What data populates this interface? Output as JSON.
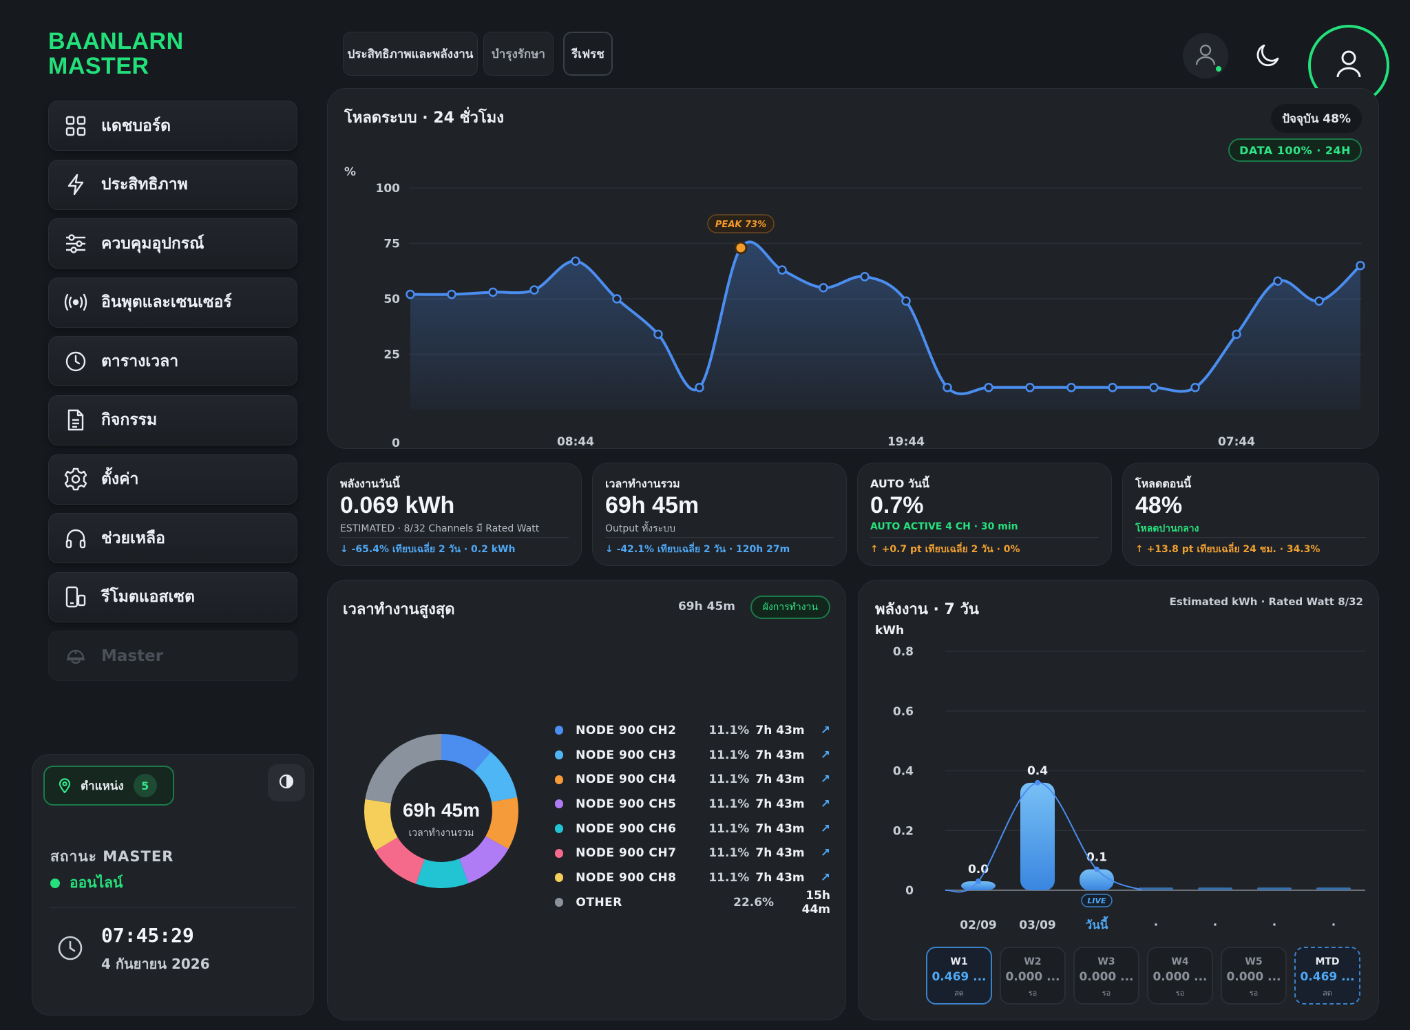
{
  "brand": {
    "line1": "BAANLARN",
    "line2": "MASTER"
  },
  "nav": [
    {
      "label": "แดชบอร์ด",
      "icon": "grid-icon"
    },
    {
      "label": "ประสิทธิภาพ",
      "icon": "lightning-icon"
    },
    {
      "label": "ควบคุมอุปกรณ์",
      "icon": "sliders-icon"
    },
    {
      "label": "อินพุตและเซนเซอร์",
      "icon": "broadcast-icon"
    },
    {
      "label": "ตารางเวลา",
      "icon": "clock-icon"
    },
    {
      "label": "กิจกรรม",
      "icon": "document-icon"
    },
    {
      "label": "ตั้งค่า",
      "icon": "gear-icon"
    },
    {
      "label": "ช่วยเหลือ",
      "icon": "headset-icon"
    },
    {
      "label": "รีโมตแอสเซต",
      "icon": "remote-device-icon"
    },
    {
      "label": "Master",
      "icon": "helmet-icon"
    }
  ],
  "tabs": [
    {
      "label": "ประสิทธิภาพและพลังงาน"
    },
    {
      "label": "บำรุงรักษา"
    },
    {
      "label": "รีเฟรช"
    }
  ],
  "sidebar_card": {
    "location_label": "ตำแหน่ง",
    "location_count": "5",
    "status_label": "สถานะ MASTER",
    "status_value": "ออนไลน์",
    "clock_time": "07:45:29",
    "clock_date": "4 กันยายน 2026"
  },
  "load_panel": {
    "title": "โหลดระบบ · 24 ชั่วโมง",
    "now": "ปัจจุบัน 48%",
    "data": "DATA 100% · 24H",
    "peak_label": "PEAK 73%",
    "accent": "#4b8ef0",
    "peak_color": "#f59b2a"
  },
  "load_chart": {
    "type": "area",
    "ylabel": "%",
    "ylim": [
      0,
      100
    ],
    "y_ticks": [
      "100",
      "75",
      "50",
      "25",
      "0"
    ],
    "x_ticks": [
      "08:44",
      "19:44",
      "07:44"
    ],
    "values": [
      52,
      52,
      53,
      54,
      67,
      50,
      34,
      10,
      73,
      63,
      55,
      60,
      49,
      10,
      10,
      10,
      10,
      10,
      10,
      10,
      34,
      58,
      49,
      65
    ],
    "peak_index": 8
  },
  "kpis": [
    {
      "label": "พลังงานวันนี้",
      "value": "0.069 kWh",
      "sub": "ESTIMATED · 8/32 Channels มี Rated Watt",
      "trend": "↓ -65.4% เทียบเฉลี่ย 2 วัน · 0.2 kWh",
      "trend_color": "blue",
      "sub_color": ""
    },
    {
      "label": "เวลาทำงานรวม",
      "value": "69h 45m",
      "sub": "Output ทั้งระบบ",
      "trend": "↓ -42.1% เทียบเฉลี่ย 2 วัน · 120h 27m",
      "trend_color": "blue",
      "sub_color": ""
    },
    {
      "label": "AUTO วันนี้",
      "value": "0.7%",
      "sub": "AUTO ACTIVE 4 CH · 30 min",
      "trend": "↑ +0.7 pt เทียบเฉลี่ย 2 วัน · 0%",
      "trend_color": "orange",
      "sub_color": "green"
    },
    {
      "label": "โหลดตอนนี้",
      "value": "48%",
      "sub": "โหลดปานกลาง",
      "trend": "↑ +13.8 pt เทียบเฉลี่ย 24 ชม. · 34.3%",
      "trend_color": "orange",
      "sub_color": "green"
    }
  ],
  "runtime_panel": {
    "title": "เวลาทำงานสูงสุด",
    "total": "69h 45m",
    "pill": "ผังการทำงาน",
    "center_value": "69h 45m",
    "center_label": "เวลาทำงานรวม"
  },
  "runtime_chart": {
    "type": "pie",
    "slices": [
      {
        "name": "NODE 900 CH2",
        "pct": 11.1,
        "pct_label": "11.1%",
        "time": "7h 43m",
        "color": "#4b8ef0"
      },
      {
        "name": "NODE 900 CH3",
        "pct": 11.1,
        "pct_label": "11.1%",
        "time": "7h 43m",
        "color": "#4fb6f5"
      },
      {
        "name": "NODE 900 CH4",
        "pct": 11.1,
        "pct_label": "11.1%",
        "time": "7h 43m",
        "color": "#f59b3a"
      },
      {
        "name": "NODE 900 CH5",
        "pct": 11.1,
        "pct_label": "11.1%",
        "time": "7h 43m",
        "color": "#b07cf5"
      },
      {
        "name": "NODE 900 CH6",
        "pct": 11.1,
        "pct_label": "11.1%",
        "time": "7h 43m",
        "color": "#22c4d4"
      },
      {
        "name": "NODE 900 CH7",
        "pct": 11.1,
        "pct_label": "11.1%",
        "time": "7h 43m",
        "color": "#f56a8a"
      },
      {
        "name": "NODE 900 CH8",
        "pct": 11.1,
        "pct_label": "11.1%",
        "time": "7h 43m",
        "color": "#f5cf5a"
      },
      {
        "name": "OTHER",
        "pct": 22.6,
        "pct_label": "22.6%",
        "time": "15h 44m",
        "color": "#8a939d"
      }
    ]
  },
  "energy_panel": {
    "title": "พลังงาน · 7 วัน",
    "note": "Estimated kWh · Rated Watt 8/32",
    "live": "LIVE"
  },
  "energy_chart": {
    "type": "bar",
    "ylabel": "kWh",
    "ylim": [
      0,
      0.8
    ],
    "y_ticks": [
      "0.8",
      "0.6",
      "0.4",
      "0.2",
      "0"
    ],
    "categories": [
      "02/09",
      "03/09",
      "วันนี้",
      "·",
      "·",
      "·",
      "·"
    ],
    "values": [
      0.03,
      0.36,
      0.07,
      0,
      0,
      0,
      0
    ],
    "data_labels": [
      "0.0",
      "0.4",
      "0.1",
      "",
      "",
      "",
      ""
    ]
  },
  "weeks": [
    {
      "name": "W1",
      "value": "0.469 ...",
      "status": "สด",
      "kind": "active"
    },
    {
      "name": "W2",
      "value": "0.000 ...",
      "status": "รอ",
      "kind": "dimw"
    },
    {
      "name": "W3",
      "value": "0.000 ...",
      "status": "รอ",
      "kind": "dimw"
    },
    {
      "name": "W4",
      "value": "0.000 ...",
      "status": "รอ",
      "kind": "dimw"
    },
    {
      "name": "W5",
      "value": "0.000 ...",
      "status": "รอ",
      "kind": "dimw"
    },
    {
      "name": "MTD",
      "value": "0.469 ...",
      "status": "สด",
      "kind": "mtd"
    }
  ]
}
